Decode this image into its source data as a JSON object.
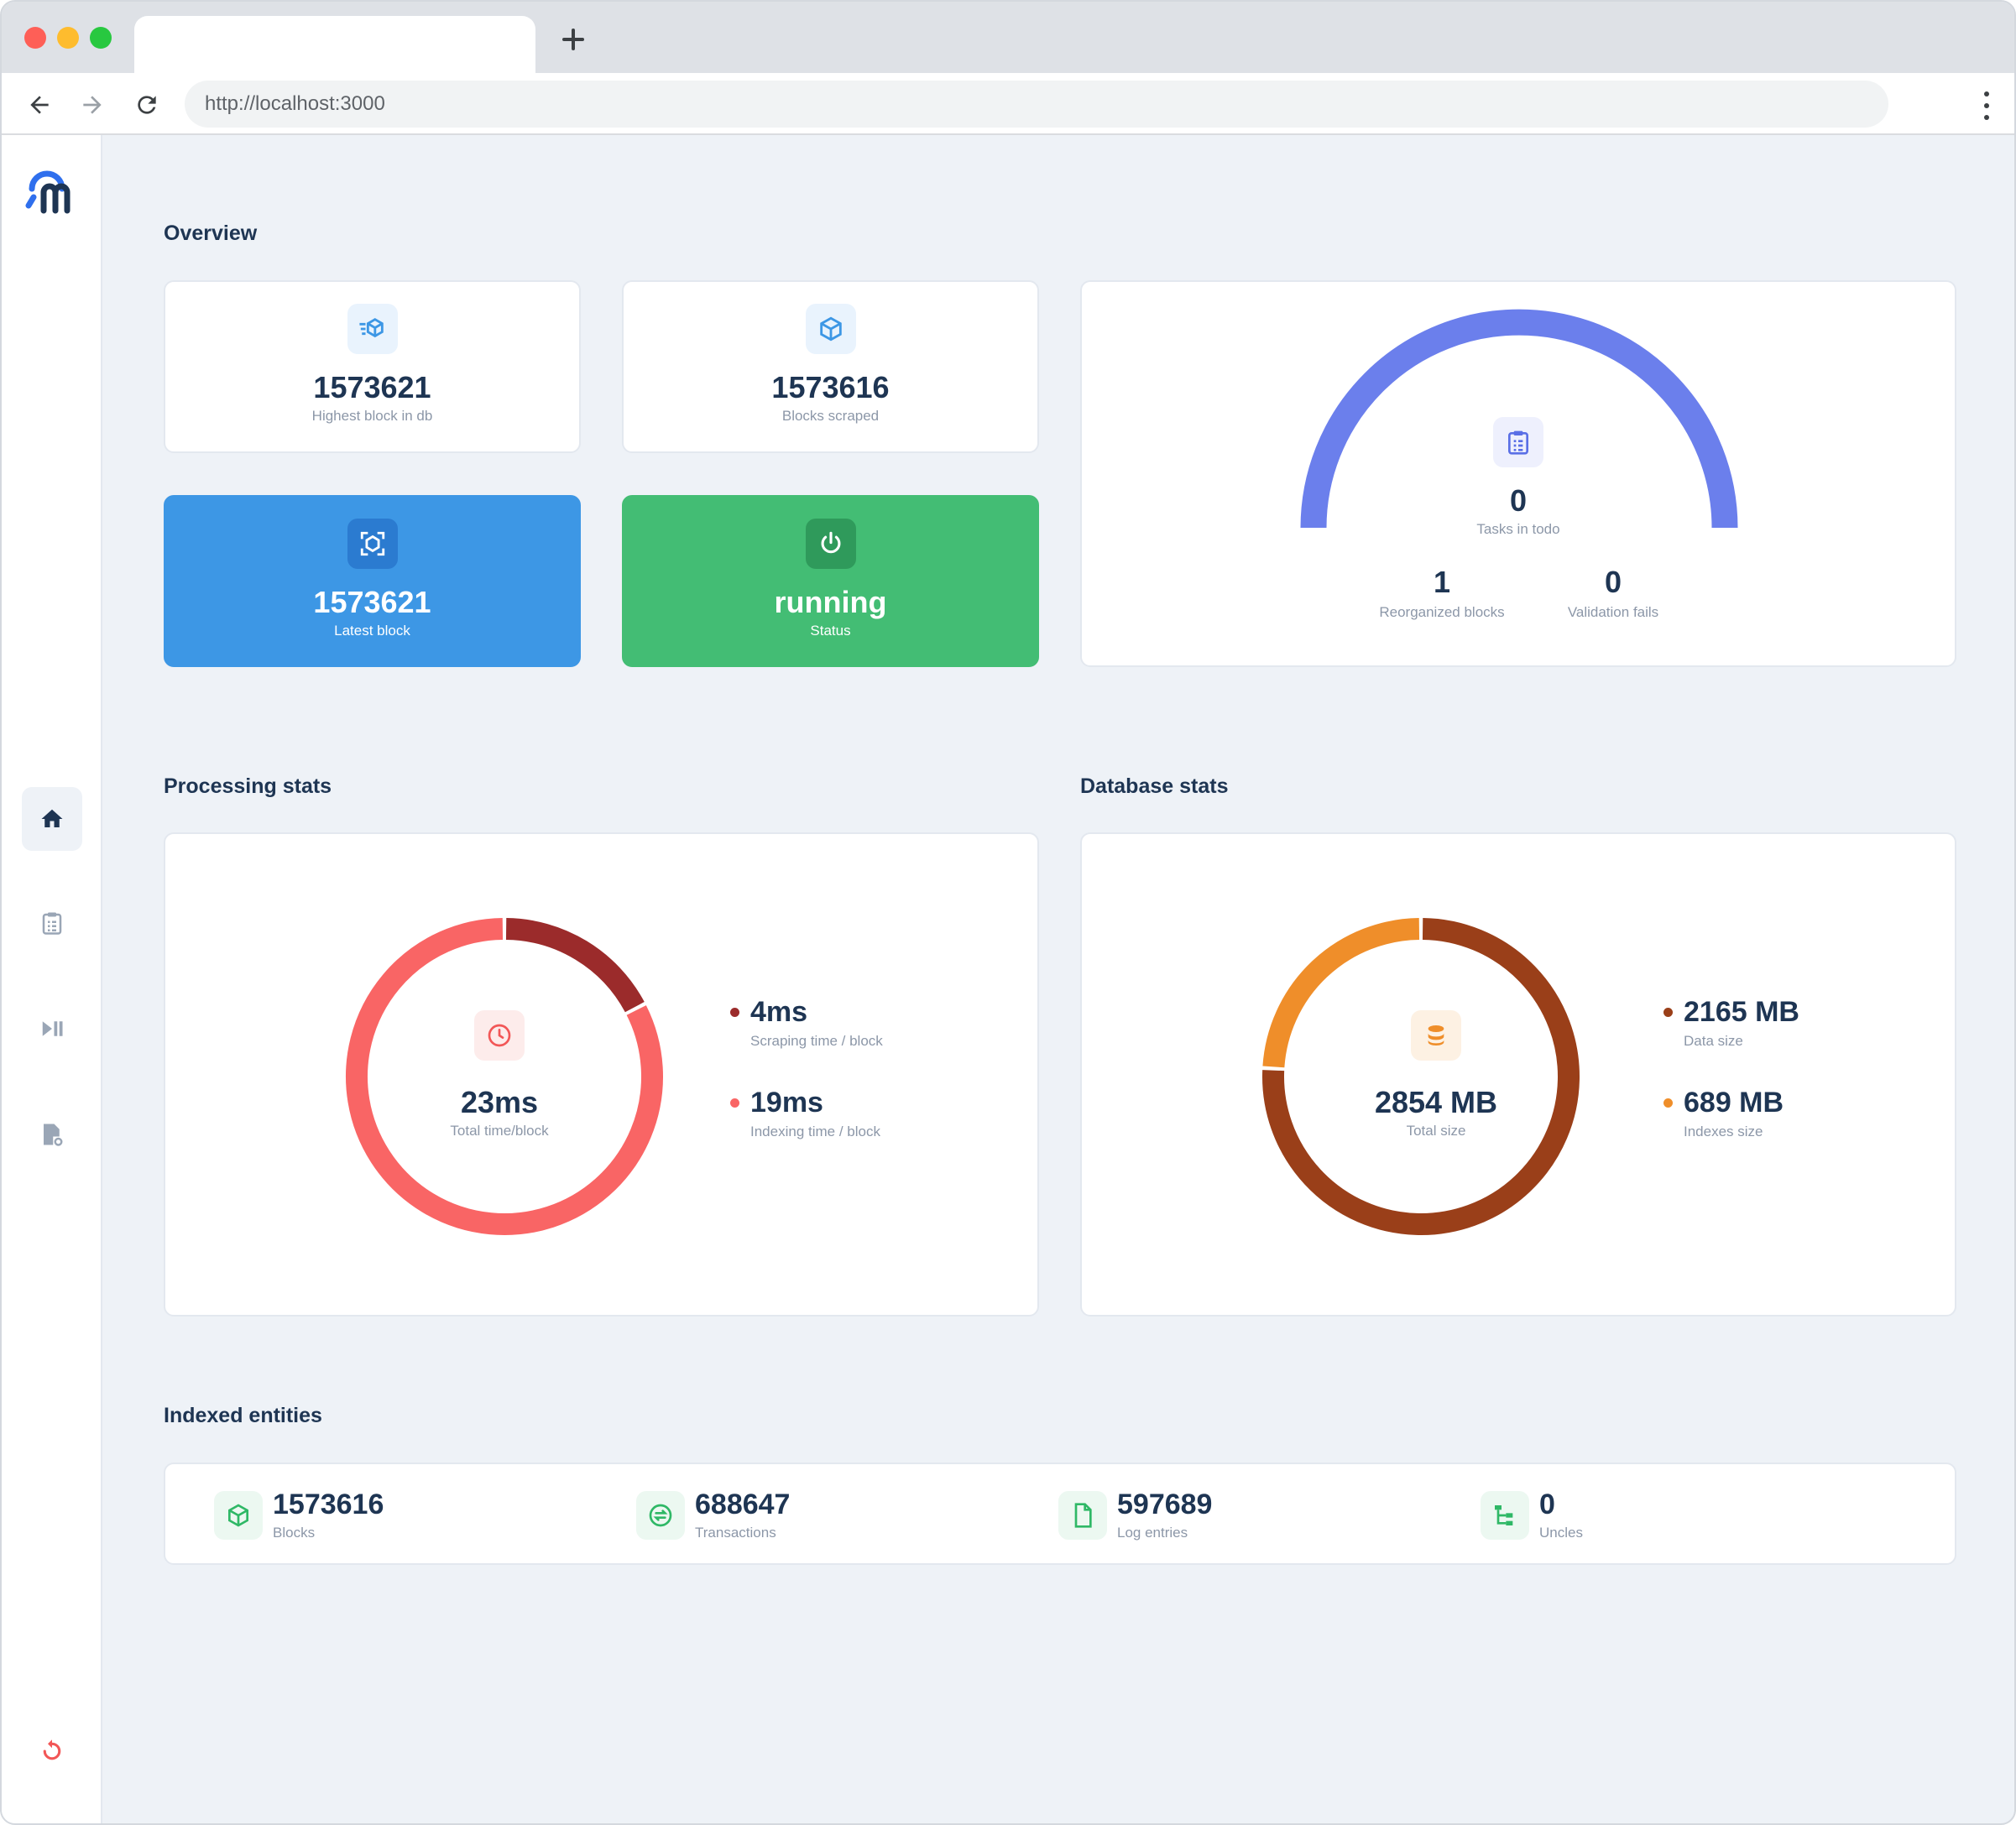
{
  "browser": {
    "url": "http://localhost:3000"
  },
  "overview": {
    "title": "Overview",
    "highest_block": {
      "value": "1573621",
      "label": "Highest block in db"
    },
    "blocks_scraped": {
      "value": "1573616",
      "label": "Blocks scraped"
    },
    "latest_block": {
      "value": "1573621",
      "label": "Latest block"
    },
    "status": {
      "value": "running",
      "label": "Status"
    },
    "tasks": {
      "todo_value": "0",
      "todo_label": "Tasks in todo",
      "reorganized_value": "1",
      "reorganized_label": "Reorganized blocks",
      "validation_value": "0",
      "validation_label": "Validation fails",
      "gauge_color": "#6b7fec"
    }
  },
  "processing": {
    "title": "Processing stats",
    "total_value": "23ms",
    "total_label": "Total time/block",
    "scraping_value": "4ms",
    "scraping_label": "Scraping time / block",
    "indexing_value": "19ms",
    "indexing_label": "Indexing time / block",
    "colors": {
      "scraping": "#9b2b2b",
      "indexing": "#f96565"
    }
  },
  "database": {
    "title": "Database stats",
    "total_value": "2854 MB",
    "total_label": "Total size",
    "data_value": "2165 MB",
    "data_label": "Data size",
    "indexes_value": "689 MB",
    "indexes_label": "Indexes size",
    "colors": {
      "data": "#9a3f19",
      "indexes": "#ef8e2a"
    }
  },
  "entities": {
    "title": "Indexed entities",
    "items": [
      {
        "value": "1573616",
        "label": "Blocks",
        "icon": "cube-icon"
      },
      {
        "value": "688647",
        "label": "Transactions",
        "icon": "transfer-icon"
      },
      {
        "value": "597689",
        "label": "Log entries",
        "icon": "file-icon"
      },
      {
        "value": "0",
        "label": "Uncles",
        "icon": "tree-icon"
      }
    ]
  },
  "chart_data": [
    {
      "type": "pie",
      "categories": [
        "Scraping time / block",
        "Indexing time / block"
      ],
      "values": [
        4,
        19
      ]
    },
    {
      "type": "pie",
      "categories": [
        "Data size",
        "Indexes size"
      ],
      "values": [
        2165,
        689
      ]
    }
  ]
}
